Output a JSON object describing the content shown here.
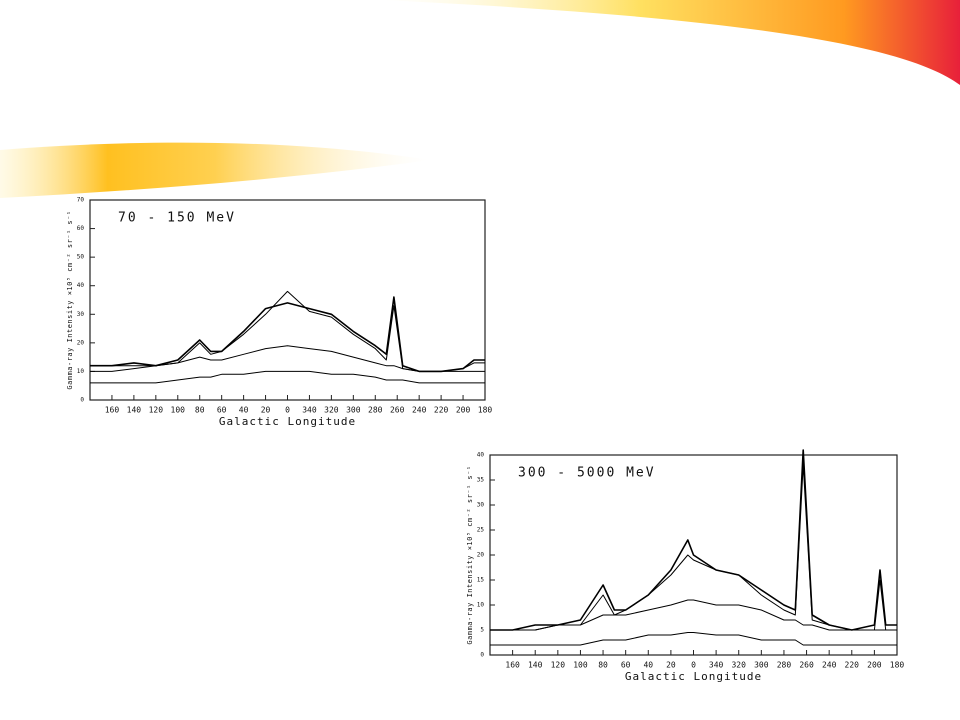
{
  "chart_data": [
    {
      "type": "line",
      "title": "70 - 150 MeV",
      "xlabel": "Galactic Longitude",
      "ylabel": "Gamma-ray Intensity ×10⁵ cm⁻² sr⁻¹ s⁻¹",
      "x": [
        180,
        160,
        140,
        120,
        100,
        80,
        70,
        60,
        40,
        20,
        0,
        -20,
        -40,
        -60,
        -80,
        -90,
        -97,
        -105,
        -120,
        -140,
        -160,
        -170,
        -180
      ],
      "series": [
        {
          "color": "#000000",
          "values": [
            12,
            12,
            13,
            12,
            14,
            21,
            17,
            17,
            24,
            32,
            34,
            32,
            30,
            24,
            19,
            16,
            36,
            12,
            10,
            10,
            11,
            14,
            14
          ]
        },
        {
          "color": "#000000",
          "values": [
            12,
            12,
            12,
            12,
            13,
            20,
            16,
            17,
            23,
            30,
            38,
            31,
            29,
            23,
            18,
            14,
            33,
            11,
            10,
            10,
            11,
            13,
            13
          ]
        },
        {
          "color": "#000000",
          "values": [
            10,
            10,
            11,
            12,
            13,
            15,
            14,
            14,
            16,
            18,
            19,
            18,
            17,
            15,
            13,
            12,
            12,
            11,
            10,
            10,
            10,
            10,
            10
          ]
        },
        {
          "color": "#000000",
          "values": [
            6,
            6,
            6,
            6,
            7,
            8,
            8,
            9,
            9,
            10,
            10,
            10,
            9,
            9,
            8,
            7,
            7,
            7,
            6,
            6,
            6,
            6,
            6
          ]
        }
      ],
      "xlim": [
        180,
        -180
      ],
      "xticks": [
        160,
        140,
        120,
        100,
        80,
        60,
        40,
        20,
        0,
        {
          "value": -20,
          "label": "340"
        },
        {
          "value": -40,
          "label": "320"
        },
        {
          "value": -60,
          "label": "300"
        },
        {
          "value": -80,
          "label": "280"
        },
        {
          "value": -100,
          "label": "260"
        },
        {
          "value": -120,
          "label": "240"
        },
        {
          "value": -140,
          "label": "220"
        },
        {
          "value": -160,
          "label": "200"
        },
        {
          "value": -180,
          "label": "180"
        }
      ],
      "ylim": [
        0,
        70
      ],
      "yticks": [
        0,
        10,
        20,
        30,
        40,
        50,
        60,
        70
      ]
    },
    {
      "type": "line",
      "title": "300 - 5000 MeV",
      "xlabel": "Galactic Longitude",
      "ylabel": "Gamma-ray Intensity ×10⁵ cm⁻² sr⁻¹ s⁻¹",
      "x": [
        180,
        160,
        140,
        120,
        100,
        80,
        70,
        60,
        40,
        20,
        5,
        0,
        -20,
        -40,
        -60,
        -80,
        -90,
        -97,
        -105,
        -120,
        -140,
        -160,
        -165,
        -170,
        -180
      ],
      "series": [
        {
          "color": "#000000",
          "values": [
            5,
            5,
            6,
            6,
            7,
            14,
            9,
            9,
            12,
            17,
            23,
            20,
            17,
            16,
            13,
            10,
            9,
            41,
            8,
            6,
            5,
            6,
            17,
            6,
            6
          ]
        },
        {
          "color": "#000000",
          "values": [
            5,
            5,
            5,
            6,
            6,
            12,
            8,
            9,
            12,
            16,
            20,
            19,
            17,
            16,
            12,
            9,
            8,
            38,
            7,
            6,
            5,
            5,
            15,
            5,
            5
          ]
        },
        {
          "color": "#000000",
          "values": [
            5,
            5,
            5,
            6,
            6,
            8,
            8,
            8,
            9,
            10,
            11,
            11,
            10,
            10,
            9,
            7,
            7,
            6,
            6,
            5,
            5,
            5,
            5,
            5,
            5
          ]
        },
        {
          "color": "#000000",
          "values": [
            2,
            2,
            2,
            2,
            2,
            3,
            3,
            3,
            4,
            4,
            4.5,
            4.5,
            4,
            4,
            3,
            3,
            3,
            2,
            2,
            2,
            2,
            2,
            2,
            2,
            2
          ]
        }
      ],
      "xlim": [
        180,
        -180
      ],
      "xticks": [
        160,
        140,
        120,
        100,
        80,
        60,
        40,
        20,
        0,
        {
          "value": -20,
          "label": "340"
        },
        {
          "value": -40,
          "label": "320"
        },
        {
          "value": -60,
          "label": "300"
        },
        {
          "value": -80,
          "label": "280"
        },
        {
          "value": -100,
          "label": "260"
        },
        {
          "value": -120,
          "label": "240"
        },
        {
          "value": -140,
          "label": "220"
        },
        {
          "value": -160,
          "label": "200"
        },
        {
          "value": -180,
          "label": "180"
        }
      ],
      "ylim": [
        0,
        40
      ],
      "yticks": [
        0,
        5,
        10,
        15,
        20,
        25,
        30,
        35,
        40
      ]
    }
  ]
}
